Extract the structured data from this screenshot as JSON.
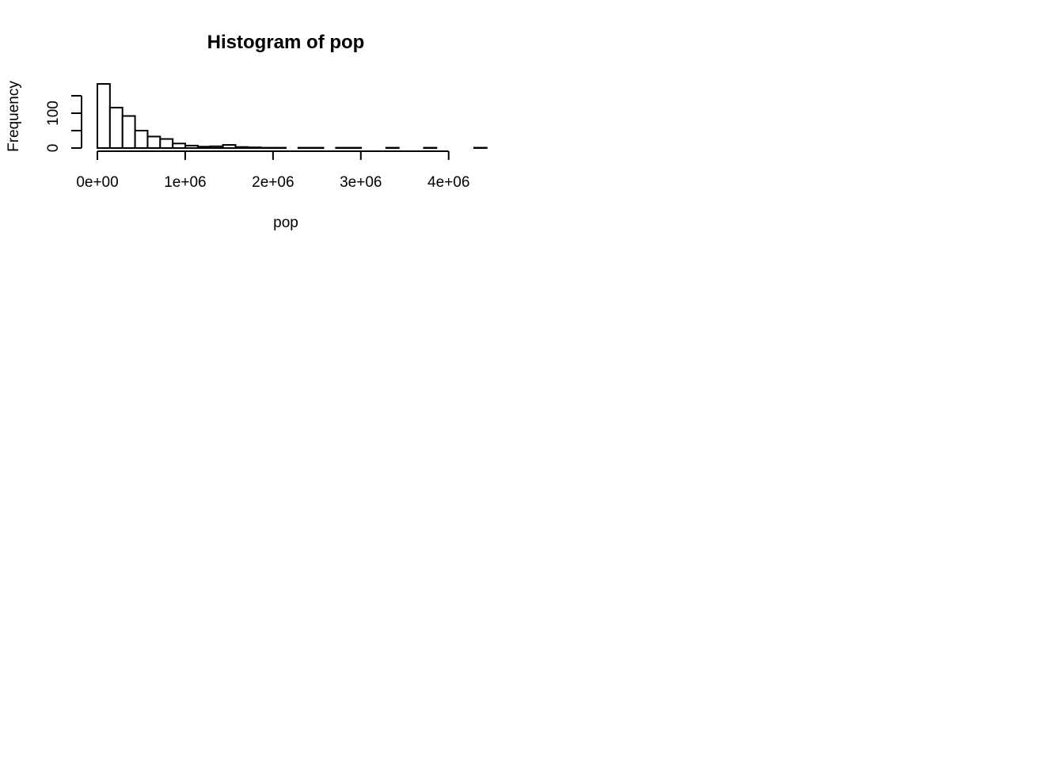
{
  "chart_data": {
    "type": "bar",
    "title": "Histogram of pop",
    "xlabel": "pop",
    "ylabel": "Frequency",
    "bin_width": 143000,
    "bins_start": 0,
    "values": [
      184,
      116,
      92,
      50,
      33,
      26,
      13,
      7,
      4,
      5,
      9,
      3,
      2,
      1,
      1,
      0,
      1,
      1,
      0,
      1,
      1,
      0,
      0,
      1,
      0,
      0,
      1,
      0,
      0,
      0,
      1
    ],
    "xlim": [
      0,
      4300000
    ],
    "ylim": [
      0,
      184
    ],
    "x_ticks": [
      0,
      1000000,
      2000000,
      3000000,
      4000000
    ],
    "x_tick_labels": [
      "0e+00",
      "1e+06",
      "2e+06",
      "3e+06",
      "4e+06"
    ],
    "y_ticks": [
      0,
      50,
      100,
      150
    ],
    "y_tick_labels": [
      "0",
      "100"
    ],
    "y_labeled_ticks": [
      0,
      100
    ],
    "grid": false,
    "legend": "none"
  }
}
